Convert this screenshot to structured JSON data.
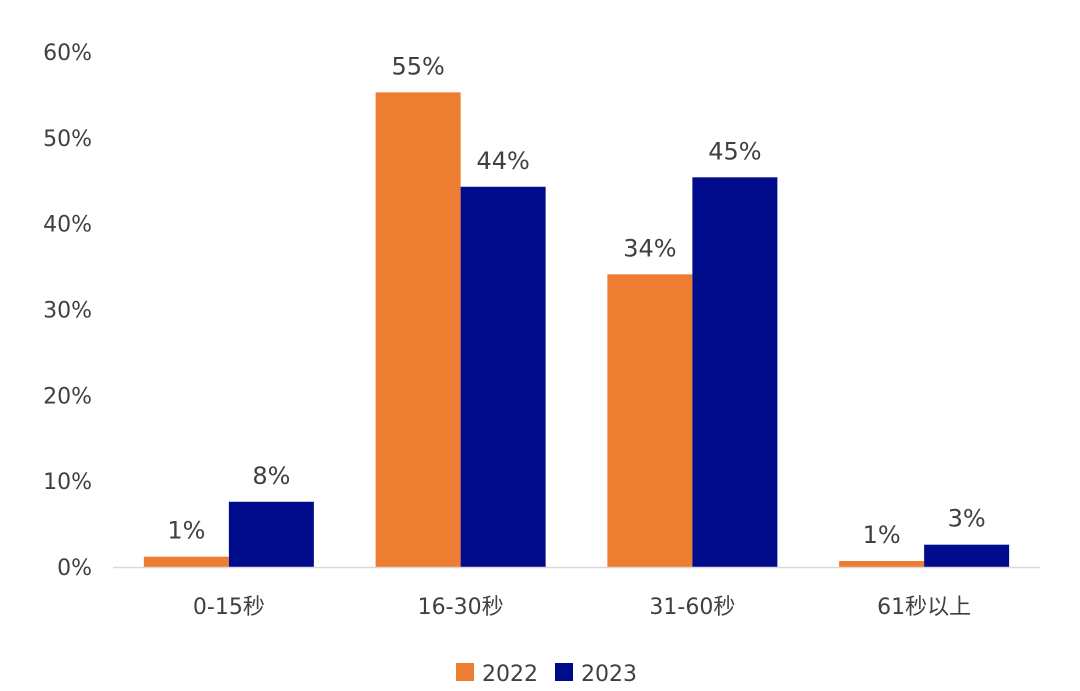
{
  "chart_data": {
    "type": "bar",
    "categories": [
      "0-15秒",
      "16-30秒",
      "31-60秒",
      "61秒以上"
    ],
    "series": [
      {
        "name": "2022",
        "color": "#ED7D31",
        "values": [
          1,
          55,
          34,
          1
        ],
        "labels": [
          "1%",
          "55%",
          "34%",
          "1%"
        ]
      },
      {
        "name": "2023",
        "color": "#000C8C",
        "values": [
          8,
          44,
          45,
          3
        ],
        "labels": [
          "8%",
          "44%",
          "45%",
          "3%"
        ]
      }
    ],
    "bar_values_exact": [
      [
        1.2,
        55.3,
        34.1,
        0.7
      ],
      [
        7.6,
        44.3,
        45.4,
        2.6
      ]
    ],
    "ylim": [
      0,
      60
    ],
    "yticks": [
      0,
      10,
      20,
      30,
      40,
      50,
      60
    ],
    "ytick_labels": [
      "0%",
      "10%",
      "20%",
      "30%",
      "40%",
      "50%",
      "60%"
    ],
    "grid": false,
    "legend": "bottom-center",
    "title": "",
    "xlabel": "",
    "ylabel": ""
  }
}
